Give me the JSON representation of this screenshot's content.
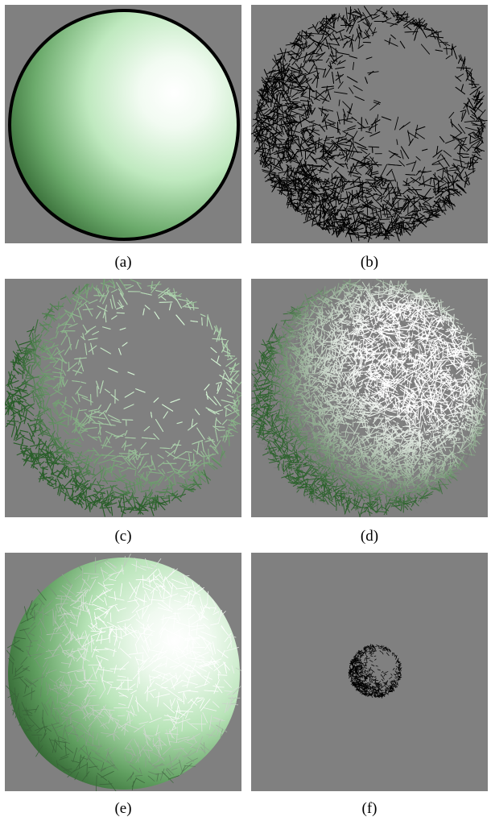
{
  "figure": {
    "background_color": "#808080",
    "sphere_light_color": "#ffffff",
    "sphere_mid_color": "#b5e7b5",
    "sphere_dark_color": "#1e4f1e",
    "panels": [
      {
        "label": "(a)"
      },
      {
        "label": "(b)"
      },
      {
        "label": "(c)"
      },
      {
        "label": "(d)"
      },
      {
        "label": "(e)"
      },
      {
        "label": "(f)"
      }
    ]
  }
}
